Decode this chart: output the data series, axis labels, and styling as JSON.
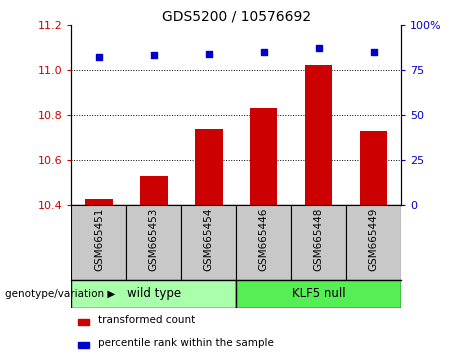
{
  "title": "GDS5200 / 10576692",
  "categories": [
    "GSM665451",
    "GSM665453",
    "GSM665454",
    "GSM665446",
    "GSM665448",
    "GSM665449"
  ],
  "bar_values": [
    10.43,
    10.53,
    10.74,
    10.83,
    11.02,
    10.73
  ],
  "scatter_values": [
    82,
    83,
    84,
    85,
    87,
    85
  ],
  "ylim_left": [
    10.4,
    11.2
  ],
  "ylim_right": [
    0,
    100
  ],
  "yticks_left": [
    10.4,
    10.6,
    10.8,
    11.0,
    11.2
  ],
  "yticks_right": [
    0,
    25,
    50,
    75,
    100
  ],
  "bar_color": "#CC0000",
  "scatter_color": "#0000CC",
  "bar_width": 0.5,
  "groups": [
    {
      "label": "wild type",
      "start": 0,
      "end": 3,
      "color": "#AAFFAA"
    },
    {
      "label": "KLF5 null",
      "start": 3,
      "end": 6,
      "color": "#55EE55"
    }
  ],
  "group_label": "genotype/variation",
  "legend_bar_label": "transformed count",
  "legend_scatter_label": "percentile rank within the sample",
  "axis_label_color_left": "#CC0000",
  "axis_label_color_right": "#0000CC",
  "background_color": "#ffffff",
  "plot_bg_color": "#ffffff",
  "label_box_color": "#C8C8C8"
}
